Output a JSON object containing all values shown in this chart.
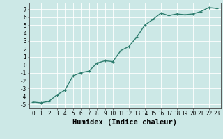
{
  "x": [
    0,
    1,
    2,
    3,
    4,
    5,
    6,
    7,
    8,
    9,
    10,
    11,
    12,
    13,
    14,
    15,
    16,
    17,
    18,
    19,
    20,
    21,
    22,
    23
  ],
  "y": [
    -4.7,
    -4.8,
    -4.6,
    -3.8,
    -3.2,
    -1.4,
    -1.0,
    -0.8,
    0.2,
    0.5,
    0.4,
    1.8,
    2.3,
    3.5,
    5.0,
    5.7,
    6.5,
    6.2,
    6.4,
    6.3,
    6.4,
    6.7,
    7.2,
    7.1
  ],
  "line_color": "#2e7d6e",
  "marker": "+",
  "marker_size": 3,
  "background_color": "#cce8e6",
  "grid_color": "#ffffff",
  "xlabel": "Humidex (Indice chaleur)",
  "xlim": [
    -0.5,
    23.5
  ],
  "ylim": [
    -5.5,
    7.8
  ],
  "yticks": [
    -5,
    -4,
    -3,
    -2,
    -1,
    0,
    1,
    2,
    3,
    4,
    5,
    6,
    7
  ],
  "xticks": [
    0,
    1,
    2,
    3,
    4,
    5,
    6,
    7,
    8,
    9,
    10,
    11,
    12,
    13,
    14,
    15,
    16,
    17,
    18,
    19,
    20,
    21,
    22,
    23
  ],
  "tick_fontsize": 5.5,
  "label_fontsize": 7.5,
  "line_width": 1.0
}
